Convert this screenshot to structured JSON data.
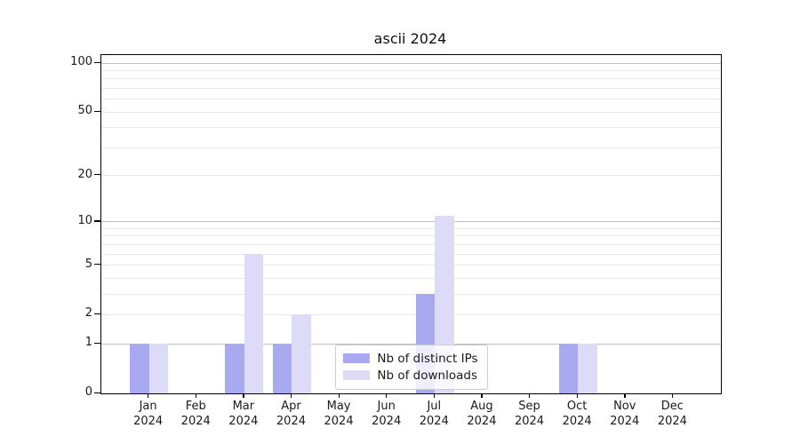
{
  "chart_data": {
    "type": "bar",
    "title": "ascii 2024",
    "months": [
      "Jan",
      "Feb",
      "Mar",
      "Apr",
      "May",
      "Jun",
      "Jul",
      "Aug",
      "Sep",
      "Oct",
      "Nov",
      "Dec"
    ],
    "year": "2024",
    "series": [
      {
        "name": "Nb of distinct IPs",
        "color": "#a9a9f1",
        "values": [
          1,
          0,
          1,
          1,
          0,
          0,
          3,
          0,
          0,
          1,
          0,
          0
        ]
      },
      {
        "name": "Nb of downloads",
        "color": "#dcdcf8",
        "values": [
          1,
          0,
          6,
          2,
          0,
          0,
          11,
          0,
          0,
          1,
          0,
          0
        ]
      }
    ],
    "yscale": "log1p",
    "ylim": [
      0,
      112
    ],
    "yticks": [
      0,
      1,
      2,
      5,
      10,
      20,
      50,
      100
    ],
    "grid": {
      "major": [
        1,
        10,
        100
      ],
      "minor": [
        2,
        3,
        4,
        5,
        6,
        7,
        8,
        9,
        20,
        30,
        40,
        50,
        60,
        70,
        80,
        90
      ]
    },
    "legend": {
      "position": "lower center",
      "items": [
        "Nb of distinct IPs",
        "Nb of downloads"
      ]
    }
  },
  "colors": {
    "major_grid": "#c0c0c0",
    "minor_grid": "#e8e8e8",
    "axis": "#000000",
    "text": "#1a1a1a",
    "legend_border": "#cccccc",
    "legend_bg": "rgba(255,255,255,0.8)"
  }
}
